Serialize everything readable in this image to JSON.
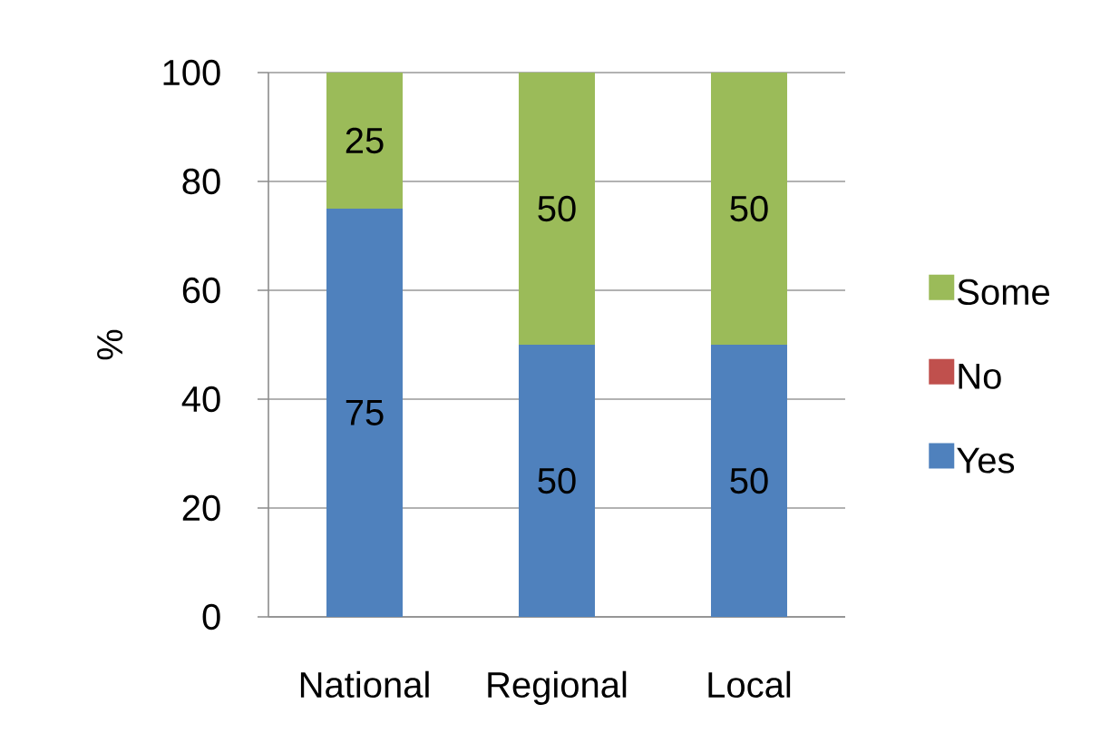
{
  "chart_data": {
    "type": "bar",
    "stacked": true,
    "ylabel": "%",
    "categories": [
      "National",
      "Regional",
      "Local"
    ],
    "series": [
      {
        "name": "Yes",
        "color": "#4f81bd",
        "values": [
          75,
          50,
          50
        ],
        "value_labels": [
          "75",
          "50",
          "50"
        ]
      },
      {
        "name": "No",
        "color": "#c0504d",
        "values": [
          0,
          0,
          0
        ],
        "value_labels": [
          null,
          null,
          null
        ]
      },
      {
        "name": "Some",
        "color": "#9bbb59",
        "values": [
          25,
          50,
          50
        ],
        "value_labels": [
          "25",
          "50",
          "50"
        ]
      }
    ],
    "ylim": [
      0,
      100
    ],
    "yticks": [
      0,
      20,
      40,
      60,
      80,
      100
    ],
    "grid": "y",
    "legend": "right"
  }
}
